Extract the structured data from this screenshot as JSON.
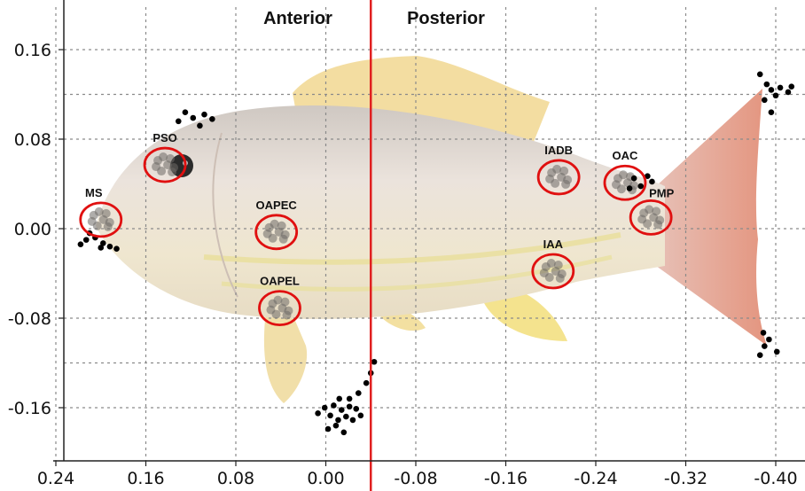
{
  "chart_data": {
    "type": "scatter",
    "xlim": [
      0.24,
      -0.4
    ],
    "ylim": [
      -0.2,
      0.2
    ],
    "x_ticks": [
      "0.24",
      "0.16",
      "0.08",
      "0.00",
      "-0.08",
      "-0.16",
      "-0.24",
      "-0.32",
      "-0.40"
    ],
    "y_ticks": [
      "0.16",
      "0.08",
      "0.00",
      "-0.08",
      "-0.16"
    ],
    "grid": true,
    "regions": [
      "Anterior",
      "Posterior"
    ],
    "divider_x": -0.04,
    "divider_color": "#e02020",
    "point_color": "#000000",
    "circle_color": "#e01010",
    "landmarks": [
      {
        "label": "MS",
        "x": 0.2,
        "y": 0.008
      },
      {
        "label": "PSO",
        "x": 0.143,
        "y": 0.057
      },
      {
        "label": "OAPEC",
        "x": 0.044,
        "y": -0.003
      },
      {
        "label": "OAPEL",
        "x": 0.041,
        "y": -0.071
      },
      {
        "label": "IADB",
        "x": -0.207,
        "y": 0.046
      },
      {
        "label": "OAC",
        "x": -0.266,
        "y": 0.041
      },
      {
        "label": "PMP",
        "x": -0.289,
        "y": 0.01
      },
      {
        "label": "IAA",
        "x": -0.202,
        "y": -0.038
      }
    ],
    "points": [
      {
        "x": 0.205,
        "y": -0.008
      },
      {
        "x": 0.213,
        "y": -0.01
      },
      {
        "x": 0.218,
        "y": -0.014
      },
      {
        "x": 0.198,
        "y": -0.013
      },
      {
        "x": 0.192,
        "y": -0.016
      },
      {
        "x": 0.186,
        "y": -0.018
      },
      {
        "x": 0.2,
        "y": -0.017
      },
      {
        "x": 0.21,
        "y": -0.004
      },
      {
        "x": 0.125,
        "y": 0.104
      },
      {
        "x": 0.118,
        "y": 0.099
      },
      {
        "x": 0.108,
        "y": 0.102
      },
      {
        "x": 0.101,
        "y": 0.098
      },
      {
        "x": 0.112,
        "y": 0.092
      },
      {
        "x": 0.131,
        "y": 0.096
      },
      {
        "x": -0.29,
        "y": 0.042
      },
      {
        "x": -0.28,
        "y": 0.038
      },
      {
        "x": -0.274,
        "y": 0.045
      },
      {
        "x": -0.286,
        "y": 0.047
      },
      {
        "x": -0.27,
        "y": 0.036
      },
      {
        "x": -0.386,
        "y": 0.138
      },
      {
        "x": -0.392,
        "y": 0.129
      },
      {
        "x": -0.396,
        "y": 0.124
      },
      {
        "x": -0.404,
        "y": 0.126
      },
      {
        "x": -0.411,
        "y": 0.122
      },
      {
        "x": -0.4,
        "y": 0.119
      },
      {
        "x": -0.39,
        "y": 0.115
      },
      {
        "x": -0.414,
        "y": 0.127
      },
      {
        "x": -0.396,
        "y": 0.104
      },
      {
        "x": -0.389,
        "y": -0.093
      },
      {
        "x": -0.394,
        "y": -0.099
      },
      {
        "x": -0.39,
        "y": -0.105
      },
      {
        "x": -0.401,
        "y": -0.11
      },
      {
        "x": -0.386,
        "y": -0.113
      },
      {
        "x": 0.001,
        "y": -0.16
      },
      {
        "x": -0.007,
        "y": -0.158
      },
      {
        "x": -0.014,
        "y": -0.162
      },
      {
        "x": -0.021,
        "y": -0.159
      },
      {
        "x": -0.027,
        "y": -0.161
      },
      {
        "x": -0.004,
        "y": -0.167
      },
      {
        "x": -0.011,
        "y": -0.171
      },
      {
        "x": -0.018,
        "y": -0.168
      },
      {
        "x": -0.024,
        "y": -0.171
      },
      {
        "x": 0.007,
        "y": -0.165
      },
      {
        "x": -0.031,
        "y": -0.167
      },
      {
        "x": -0.009,
        "y": -0.176
      },
      {
        "x": -0.016,
        "y": -0.182
      },
      {
        "x": -0.002,
        "y": -0.179
      },
      {
        "x": -0.021,
        "y": -0.152
      },
      {
        "x": -0.029,
        "y": -0.147
      },
      {
        "x": -0.036,
        "y": -0.138
      },
      {
        "x": -0.04,
        "y": -0.129
      },
      {
        "x": -0.043,
        "y": -0.119
      },
      {
        "x": -0.012,
        "y": -0.152
      }
    ]
  }
}
